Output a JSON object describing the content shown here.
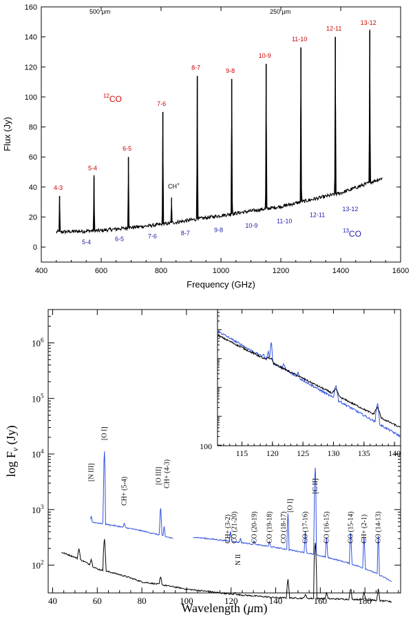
{
  "colors": {
    "co12": "#cc0000",
    "co13": "#1a1aa8",
    "blue_spectrum": "#3050e0",
    "black": "#000000"
  },
  "chart_data": [
    {
      "type": "line",
      "xlabel": "Frequency (GHz)",
      "ylabel": "Flux (Jy)",
      "xlim": [
        400,
        1600
      ],
      "ylim": [
        -10,
        160
      ],
      "xticks": [
        "400",
        "600",
        "800",
        "1000",
        "1200",
        "1400",
        "1600"
      ],
      "yticks": [
        "0",
        "20",
        "40",
        "60",
        "80",
        "100",
        "120",
        "140",
        "160"
      ],
      "top_labels": [
        "500 μm",
        "250 μm"
      ],
      "species_labels": {
        "co12": "12CO",
        "co12_sup": "12",
        "co12_main": "CO",
        "co13": "13CO",
        "co13_sup": "13",
        "co13_main": "CO",
        "chplus": "CH+",
        "chplus_main": "CH",
        "chplus_sup": "+"
      },
      "continuum": {
        "x": [
          450,
          600,
          800,
          1000,
          1200,
          1400,
          1540
        ],
        "y": [
          10,
          11,
          15,
          21,
          27,
          36,
          46
        ]
      },
      "co12_lines": [
        {
          "label": "4-3",
          "x": 461,
          "peak": 34
        },
        {
          "label": "5-4",
          "x": 576,
          "peak": 47
        },
        {
          "label": "6-5",
          "x": 691,
          "peak": 60
        },
        {
          "label": "7-6",
          "x": 806,
          "peak": 90
        },
        {
          "label": "8-7",
          "x": 921,
          "peak": 114
        },
        {
          "label": "9-8",
          "x": 1036,
          "peak": 112
        },
        {
          "label": "10-9",
          "x": 1151,
          "peak": 122
        },
        {
          "label": "11-10",
          "x": 1267,
          "peak": 133
        },
        {
          "label": "12-11",
          "x": 1382,
          "peak": 140
        },
        {
          "label": "13-12",
          "x": 1497,
          "peak": 144
        }
      ],
      "co13_lines": [
        {
          "label": "5-4",
          "x": 551,
          "peak": 12
        },
        {
          "label": "6-5",
          "x": 661,
          "peak": 14
        },
        {
          "label": "7-6",
          "x": 771,
          "peak": 16
        },
        {
          "label": "8-7",
          "x": 881,
          "peak": 18
        },
        {
          "label": "9-8",
          "x": 992,
          "peak": 20
        },
        {
          "label": "10-9",
          "x": 1102,
          "peak": 23
        },
        {
          "label": "11-10",
          "x": 1212,
          "peak": 26
        },
        {
          "label": "12-11",
          "x": 1322,
          "peak": 30
        },
        {
          "label": "13-12",
          "x": 1432,
          "peak": 34
        }
      ],
      "chplus_line": {
        "x": 835,
        "peak": 33
      }
    },
    {
      "type": "line",
      "xlabel": "Wavelength (μm)",
      "ylabel": "log Fν (Jy)",
      "xlabel_main": "Wavelength (",
      "xlabel_mu": "μ",
      "xlabel_end": "m)",
      "ylabel_main": "log F",
      "ylabel_sub": "ν",
      "ylabel_end": " (Jy)",
      "xlim": [
        38,
        196
      ],
      "ylim_log": [
        1,
        5
      ],
      "yscale": "log",
      "xticks": [
        "40",
        "60",
        "80",
        "100",
        "120",
        "140",
        "160",
        "180"
      ],
      "yticks": [
        "10²",
        "10³",
        "10⁴",
        "10⁵",
        "10⁶"
      ],
      "ytick_base": "10",
      "ytick_exps": [
        "2",
        "3",
        "4",
        "5",
        "6"
      ],
      "lines": [
        {
          "label": "[N III]",
          "x": 57.3,
          "rot": true
        },
        {
          "label": "[O I]",
          "x": 63.2,
          "rot": true
        },
        {
          "label": "CH+ (5-4)",
          "x": 72.1,
          "rot": true
        },
        {
          "label": "[O III]",
          "x": 88.4,
          "rot": true
        },
        {
          "label": "CH+ (4-3)",
          "x": 90.0,
          "rot": true
        },
        {
          "label": "CH+ (3-2)",
          "x": 119.8,
          "rot": true
        },
        {
          "label": "CO (21-20)",
          "x": 124.2,
          "rot": true
        },
        {
          "label": "N II",
          "x": 121.9,
          "rot": true
        },
        {
          "label": "CO (20-19)",
          "x": 130.4,
          "rot": true
        },
        {
          "label": "CO (19-18)",
          "x": 137.2,
          "rot": true
        },
        {
          "label": "CO (18-17)",
          "x": 144.8,
          "rot": true
        },
        {
          "label": "[O I]",
          "x": 145.5,
          "rot": true
        },
        {
          "label": "CO (17-16)",
          "x": 153.3,
          "rot": true
        },
        {
          "label": "[C II]",
          "x": 157.7,
          "rot": true
        },
        {
          "label": "CO (16-15)",
          "x": 162.8,
          "rot": true
        },
        {
          "label": "CO (15-14)",
          "x": 173.6,
          "rot": true
        },
        {
          "label": "CH+ (2-1)",
          "x": 179.6,
          "rot": true
        },
        {
          "label": "CO (14-13)",
          "x": 186.0,
          "rot": true
        }
      ],
      "blue_segment_1": {
        "x": [
          57,
          94
        ],
        "y": [
          600,
          300
        ]
      },
      "blue_segment_2": {
        "x": [
          103,
          192
        ],
        "y": [
          320,
          50
        ]
      },
      "black_continuum": {
        "x": [
          44,
          60,
          80,
          100,
          120,
          140,
          160,
          180,
          192
        ],
        "y": [
          170,
          85,
          50,
          37,
          30,
          26,
          25,
          24,
          22
        ]
      },
      "inset": {
        "xlim": [
          111,
          141
        ],
        "xticks": [
          "115",
          "120",
          "125",
          "130",
          "135",
          "140"
        ],
        "ytick_label": "100"
      }
    }
  ]
}
